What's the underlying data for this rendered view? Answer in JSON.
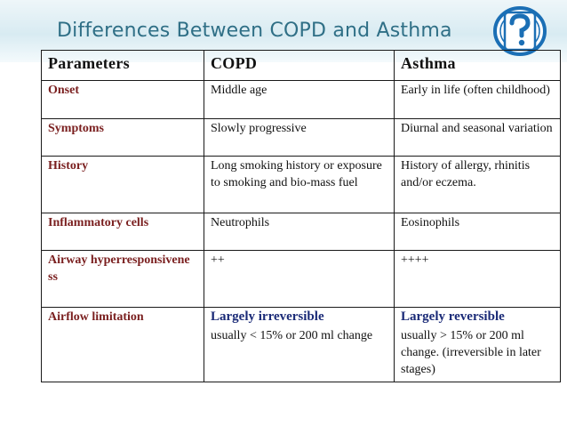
{
  "slide": {
    "title": "Differences Between COPD and Asthma"
  },
  "table": {
    "headers": [
      "Parameters",
      "COPD",
      "Asthma"
    ],
    "rows": [
      {
        "param": "Onset",
        "copd": "Middle age",
        "asthma": "Early in life (often childhood)"
      },
      {
        "param": "Symptoms",
        "copd": "Slowly progressive",
        "asthma": "Diurnal and seasonal variation"
      },
      {
        "param": "History",
        "copd": "Long smoking history or exposure to smoking and bio-mass fuel",
        "asthma": "History of allergy, rhinitis and/or eczema."
      },
      {
        "param": "Inflammatory cells",
        "copd": "Neutrophils",
        "asthma": "Eosinophils"
      },
      {
        "param": "Airway hyperresponsivene ss",
        "copd": "++",
        "asthma": "++++"
      },
      {
        "param": "Airflow limitation",
        "copd_strong": "Largely irreversible",
        "copd": "usually < 15% or 200 ml change",
        "asthma_strong": "Largely reversible",
        "asthma": "usually > 15% or 200 ml change. (irreversible in later stages)"
      }
    ]
  },
  "colors": {
    "title": "#2f6f86",
    "param_text": "#7a1f1f",
    "emphasis_text": "#1a2a77",
    "logo_blue": "#1b6fb5"
  },
  "icons": {
    "logo": "question-mark-badge-icon"
  }
}
